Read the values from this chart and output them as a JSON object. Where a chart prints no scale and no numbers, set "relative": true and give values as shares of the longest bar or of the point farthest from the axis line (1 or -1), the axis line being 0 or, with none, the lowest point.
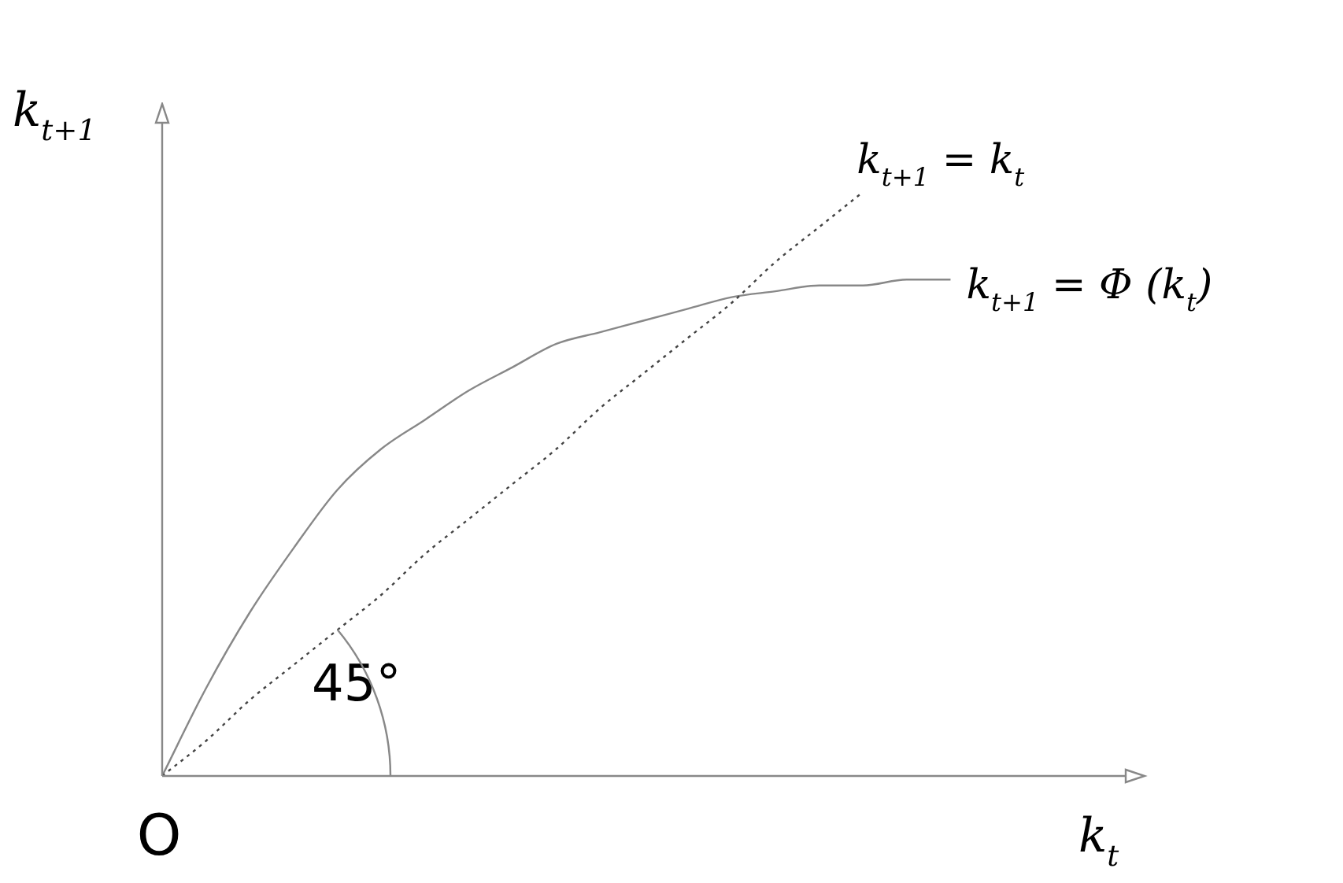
{
  "chart_data": {
    "type": "line",
    "relative": true,
    "xlabel": "k$_{t}$",
    "ylabel": "k$_{t+1}$",
    "categories": [
      null,
      null,
      null,
      null,
      null,
      null,
      null,
      null,
      null,
      null,
      null,
      null,
      null,
      null,
      null,
      null,
      null,
      null,
      null,
      null,
      null,
      null,
      null
    ],
    "series": [
      {
        "name": "k$_{t+1}$ = k$_{t}$",
        "color": "#444444",
        "line_style": "dotted",
        "values": [
          0,
          0.06,
          0.13,
          0.19,
          0.25,
          0.31,
          0.38,
          0.44,
          0.5,
          0.56,
          0.63,
          0.69,
          0.75,
          0.81,
          0.88,
          0.94,
          1,
          null,
          null,
          null,
          null,
          null,
          null
        ]
      },
      {
        "name": "k$_{t+1}$ = Φ (k$_{t}$)",
        "color": "#888888",
        "line_style": "solid",
        "values": [
          0,
          0.15,
          0.28,
          0.39,
          0.49,
          0.56,
          0.61,
          0.66,
          0.7,
          0.74,
          0.76,
          0.78,
          0.8,
          0.82,
          0.83,
          0.84,
          0.84,
          0.85,
          0.85,
          null,
          null,
          null,
          null
        ]
      }
    ],
    "annotations": [
      "O",
      "45°"
    ],
    "legend": false,
    "grid": false,
    "marker": "none"
  }
}
